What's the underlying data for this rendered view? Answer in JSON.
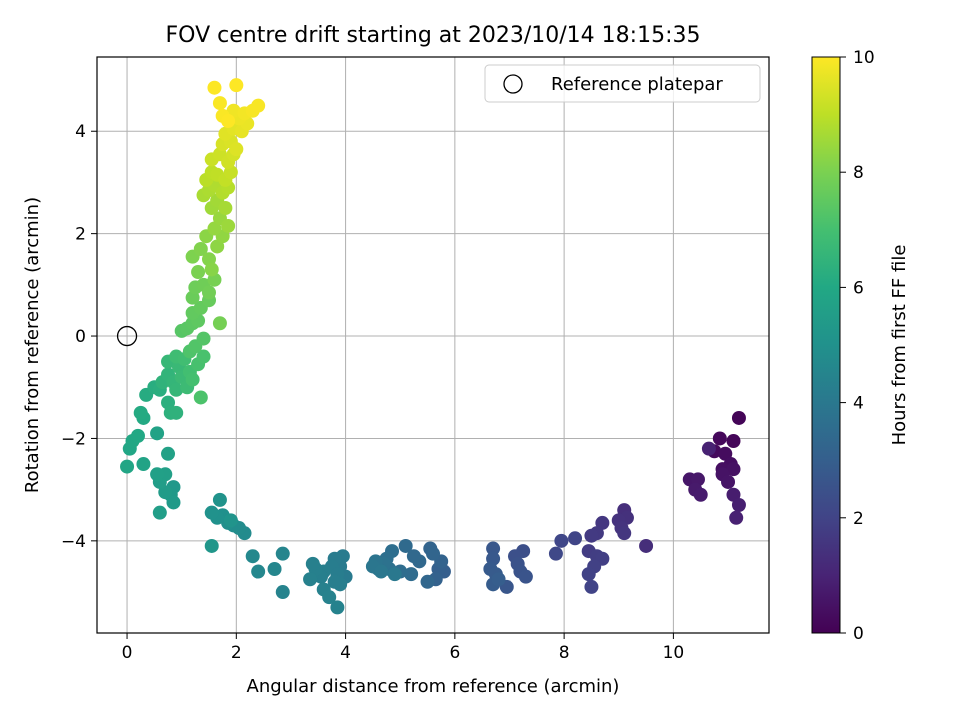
{
  "chart_data": {
    "type": "scatter",
    "title": "FOV centre drift starting at 2023/10/14 18:15:35",
    "xlabel": "Angular distance from reference (arcmin)",
    "ylabel": "Rotation from reference (arcmin)",
    "xlim": [
      -0.55,
      11.75
    ],
    "ylim": [
      -5.8,
      5.45
    ],
    "xticks": [
      0,
      2,
      4,
      6,
      8,
      10
    ],
    "yticks": [
      -4,
      -2,
      0,
      2,
      4
    ],
    "grid": true,
    "legend": {
      "position": "top-right",
      "entries": [
        "Reference platepar"
      ]
    },
    "reference_point": {
      "x": 0,
      "y": 0
    },
    "colorbar": {
      "label": "Hours from first FF file",
      "min": 0,
      "max": 10,
      "ticks": [
        0,
        2,
        4,
        6,
        8,
        10
      ],
      "colormap": "viridis"
    },
    "series": [
      {
        "points": [
          {
            "x": 11.2,
            "y": -1.6,
            "h": 0.1
          },
          {
            "x": 11.1,
            "y": -2.05,
            "h": 0.15
          },
          {
            "x": 10.85,
            "y": -2.0,
            "h": 0.2
          },
          {
            "x": 10.75,
            "y": -2.25,
            "h": 0.25
          },
          {
            "x": 10.95,
            "y": -2.3,
            "h": 0.3
          },
          {
            "x": 11.05,
            "y": -2.5,
            "h": 0.35
          },
          {
            "x": 10.9,
            "y": -2.6,
            "h": 0.4
          },
          {
            "x": 11.1,
            "y": -2.6,
            "h": 0.45
          },
          {
            "x": 10.9,
            "y": -2.7,
            "h": 0.5
          },
          {
            "x": 11.0,
            "y": -2.85,
            "h": 0.55
          },
          {
            "x": 10.3,
            "y": -2.8,
            "h": 0.6
          },
          {
            "x": 10.45,
            "y": -2.8,
            "h": 0.65
          },
          {
            "x": 10.4,
            "y": -3.0,
            "h": 0.7
          },
          {
            "x": 10.5,
            "y": -3.1,
            "h": 0.75
          },
          {
            "x": 11.1,
            "y": -3.1,
            "h": 0.8
          },
          {
            "x": 11.2,
            "y": -3.3,
            "h": 0.85
          },
          {
            "x": 11.15,
            "y": -3.55,
            "h": 0.9
          },
          {
            "x": 10.65,
            "y": -2.2,
            "h": 0.95
          },
          {
            "x": 9.5,
            "y": -4.1,
            "h": 1.3
          },
          {
            "x": 9.1,
            "y": -3.4,
            "h": 1.35
          },
          {
            "x": 9.15,
            "y": -3.55,
            "h": 1.4
          },
          {
            "x": 9.0,
            "y": -3.6,
            "h": 1.45
          },
          {
            "x": 9.05,
            "y": -3.75,
            "h": 1.5
          },
          {
            "x": 9.1,
            "y": -3.85,
            "h": 1.55
          },
          {
            "x": 8.7,
            "y": -3.65,
            "h": 1.6
          },
          {
            "x": 8.6,
            "y": -3.85,
            "h": 1.65
          },
          {
            "x": 8.5,
            "y": -3.9,
            "h": 1.7
          },
          {
            "x": 8.45,
            "y": -4.2,
            "h": 1.75
          },
          {
            "x": 8.6,
            "y": -4.3,
            "h": 1.8
          },
          {
            "x": 8.7,
            "y": -4.35,
            "h": 1.85
          },
          {
            "x": 8.55,
            "y": -4.5,
            "h": 1.9
          },
          {
            "x": 8.45,
            "y": -4.65,
            "h": 1.95
          },
          {
            "x": 8.5,
            "y": -4.9,
            "h": 2.0
          },
          {
            "x": 8.2,
            "y": -3.95,
            "h": 2.05
          },
          {
            "x": 7.95,
            "y": -4.0,
            "h": 2.1
          },
          {
            "x": 7.85,
            "y": -4.25,
            "h": 2.15
          },
          {
            "x": 7.25,
            "y": -4.2,
            "h": 2.4
          },
          {
            "x": 7.1,
            "y": -4.3,
            "h": 2.45
          },
          {
            "x": 7.15,
            "y": -4.45,
            "h": 2.5
          },
          {
            "x": 7.2,
            "y": -4.6,
            "h": 2.55
          },
          {
            "x": 7.3,
            "y": -4.7,
            "h": 2.6
          },
          {
            "x": 6.95,
            "y": -4.9,
            "h": 2.65
          },
          {
            "x": 6.7,
            "y": -4.15,
            "h": 2.7
          },
          {
            "x": 6.7,
            "y": -4.35,
            "h": 2.75
          },
          {
            "x": 6.65,
            "y": -4.55,
            "h": 2.8
          },
          {
            "x": 6.75,
            "y": -4.65,
            "h": 2.85
          },
          {
            "x": 6.7,
            "y": -4.85,
            "h": 2.9
          },
          {
            "x": 6.8,
            "y": -4.75,
            "h": 2.95
          },
          {
            "x": 5.8,
            "y": -4.6,
            "h": 3.0
          },
          {
            "x": 5.7,
            "y": -4.55,
            "h": 3.05
          },
          {
            "x": 5.65,
            "y": -4.75,
            "h": 3.1
          },
          {
            "x": 5.75,
            "y": -4.4,
            "h": 3.15
          },
          {
            "x": 5.55,
            "y": -4.15,
            "h": 3.2
          },
          {
            "x": 5.6,
            "y": -4.25,
            "h": 3.25
          },
          {
            "x": 5.5,
            "y": -4.8,
            "h": 3.3
          },
          {
            "x": 5.35,
            "y": -4.4,
            "h": 3.35
          },
          {
            "x": 5.25,
            "y": -4.3,
            "h": 3.4
          },
          {
            "x": 5.1,
            "y": -4.1,
            "h": 3.45
          },
          {
            "x": 5.2,
            "y": -4.65,
            "h": 3.5
          },
          {
            "x": 5.0,
            "y": -4.6,
            "h": 3.55
          },
          {
            "x": 4.85,
            "y": -4.2,
            "h": 3.6
          },
          {
            "x": 4.75,
            "y": -4.35,
            "h": 3.65
          },
          {
            "x": 4.8,
            "y": -4.55,
            "h": 3.7
          },
          {
            "x": 4.7,
            "y": -4.45,
            "h": 3.75
          },
          {
            "x": 4.6,
            "y": -4.55,
            "h": 3.8
          },
          {
            "x": 4.55,
            "y": -4.4,
            "h": 3.85
          },
          {
            "x": 4.5,
            "y": -4.5,
            "h": 3.9
          },
          {
            "x": 4.65,
            "y": -4.6,
            "h": 3.95
          },
          {
            "x": 4.9,
            "y": -4.65,
            "h": 4.0
          },
          {
            "x": 4.0,
            "y": -4.7,
            "h": 4.1
          },
          {
            "x": 3.9,
            "y": -4.5,
            "h": 4.12
          },
          {
            "x": 3.95,
            "y": -4.3,
            "h": 4.14
          },
          {
            "x": 3.8,
            "y": -4.35,
            "h": 4.16
          },
          {
            "x": 3.75,
            "y": -4.5,
            "h": 4.18
          },
          {
            "x": 3.85,
            "y": -4.65,
            "h": 4.2
          },
          {
            "x": 3.9,
            "y": -4.85,
            "h": 4.22
          },
          {
            "x": 3.8,
            "y": -4.8,
            "h": 4.24
          },
          {
            "x": 3.6,
            "y": -4.6,
            "h": 4.26
          },
          {
            "x": 3.55,
            "y": -4.7,
            "h": 4.28
          },
          {
            "x": 3.45,
            "y": -4.55,
            "h": 4.3
          },
          {
            "x": 3.4,
            "y": -4.45,
            "h": 4.32
          },
          {
            "x": 3.35,
            "y": -4.75,
            "h": 4.34
          },
          {
            "x": 3.6,
            "y": -4.95,
            "h": 4.36
          },
          {
            "x": 3.7,
            "y": -5.1,
            "h": 4.38
          },
          {
            "x": 3.85,
            "y": -5.3,
            "h": 4.4
          },
          {
            "x": 2.85,
            "y": -5.0,
            "h": 4.45
          },
          {
            "x": 2.85,
            "y": -4.25,
            "h": 4.5
          },
          {
            "x": 2.7,
            "y": -4.55,
            "h": 4.55
          },
          {
            "x": 2.4,
            "y": -4.6,
            "h": 4.6
          },
          {
            "x": 2.3,
            "y": -4.3,
            "h": 4.65
          },
          {
            "x": 2.15,
            "y": -3.85,
            "h": 4.75
          },
          {
            "x": 2.05,
            "y": -3.75,
            "h": 4.8
          },
          {
            "x": 1.95,
            "y": -3.7,
            "h": 4.85
          },
          {
            "x": 1.85,
            "y": -3.65,
            "h": 4.9
          },
          {
            "x": 1.75,
            "y": -3.5,
            "h": 4.95
          },
          {
            "x": 1.65,
            "y": -3.55,
            "h": 5.0
          },
          {
            "x": 1.55,
            "y": -3.45,
            "h": 5.05
          },
          {
            "x": 1.7,
            "y": -3.2,
            "h": 5.1
          },
          {
            "x": 1.9,
            "y": -3.6,
            "h": 5.15
          },
          {
            "x": 1.55,
            "y": -4.1,
            "h": 5.2
          },
          {
            "x": 0.85,
            "y": -2.95,
            "h": 5.3
          },
          {
            "x": 0.8,
            "y": -3.1,
            "h": 5.35
          },
          {
            "x": 0.85,
            "y": -3.25,
            "h": 5.4
          },
          {
            "x": 0.7,
            "y": -3.05,
            "h": 5.45
          },
          {
            "x": 0.6,
            "y": -2.85,
            "h": 5.5
          },
          {
            "x": 0.6,
            "y": -3.45,
            "h": 5.55
          },
          {
            "x": 0.7,
            "y": -2.7,
            "h": 5.6
          },
          {
            "x": 0.55,
            "y": -2.7,
            "h": 5.65
          },
          {
            "x": 0.75,
            "y": -2.3,
            "h": 5.7
          },
          {
            "x": 0.55,
            "y": -1.9,
            "h": 5.75
          },
          {
            "x": 0.3,
            "y": -2.5,
            "h": 5.8
          },
          {
            "x": 0.0,
            "y": -2.55,
            "h": 5.85
          },
          {
            "x": 0.05,
            "y": -2.2,
            "h": 5.9
          },
          {
            "x": 0.1,
            "y": -2.05,
            "h": 5.95
          },
          {
            "x": 0.2,
            "y": -1.95,
            "h": 6.0
          },
          {
            "x": 0.3,
            "y": -1.6,
            "h": 6.05
          },
          {
            "x": 0.25,
            "y": -1.5,
            "h": 6.1
          },
          {
            "x": 0.35,
            "y": -1.15,
            "h": 6.15
          },
          {
            "x": 0.5,
            "y": -1.0,
            "h": 6.2
          },
          {
            "x": 0.6,
            "y": -1.05,
            "h": 6.25
          },
          {
            "x": 0.75,
            "y": -1.3,
            "h": 6.3
          },
          {
            "x": 0.8,
            "y": -1.5,
            "h": 6.35
          },
          {
            "x": 0.9,
            "y": -1.5,
            "h": 6.4
          },
          {
            "x": 0.65,
            "y": -0.9,
            "h": 6.45
          },
          {
            "x": 0.75,
            "y": -0.75,
            "h": 6.5
          },
          {
            "x": 0.85,
            "y": -0.9,
            "h": 6.55
          },
          {
            "x": 0.9,
            "y": -1.05,
            "h": 6.6
          },
          {
            "x": 0.75,
            "y": -0.5,
            "h": 6.65
          },
          {
            "x": 0.95,
            "y": -0.6,
            "h": 6.7
          },
          {
            "x": 1.0,
            "y": -0.8,
            "h": 6.75
          },
          {
            "x": 1.1,
            "y": -1.0,
            "h": 6.8
          },
          {
            "x": 0.9,
            "y": -0.4,
            "h": 6.85
          },
          {
            "x": 1.05,
            "y": -0.45,
            "h": 6.9
          },
          {
            "x": 1.15,
            "y": -0.7,
            "h": 6.95
          },
          {
            "x": 1.2,
            "y": -0.85,
            "h": 7.0
          },
          {
            "x": 1.3,
            "y": -0.55,
            "h": 7.05
          },
          {
            "x": 1.4,
            "y": -0.4,
            "h": 7.1
          },
          {
            "x": 1.35,
            "y": -1.2,
            "h": 7.15
          },
          {
            "x": 1.15,
            "y": -0.3,
            "h": 7.2
          },
          {
            "x": 1.25,
            "y": -0.2,
            "h": 7.25
          },
          {
            "x": 1.4,
            "y": -0.05,
            "h": 7.3
          },
          {
            "x": 1.0,
            "y": 0.1,
            "h": 7.35
          },
          {
            "x": 1.1,
            "y": 0.15,
            "h": 7.4
          },
          {
            "x": 1.2,
            "y": 0.25,
            "h": 7.45
          },
          {
            "x": 1.3,
            "y": 0.3,
            "h": 7.5
          },
          {
            "x": 1.2,
            "y": 0.45,
            "h": 7.55
          },
          {
            "x": 1.35,
            "y": 0.55,
            "h": 7.6
          },
          {
            "x": 1.5,
            "y": 0.7,
            "h": 7.65
          },
          {
            "x": 1.2,
            "y": 0.75,
            "h": 7.7
          },
          {
            "x": 1.25,
            "y": 0.95,
            "h": 7.75
          },
          {
            "x": 1.4,
            "y": 1.0,
            "h": 7.8
          },
          {
            "x": 1.5,
            "y": 0.85,
            "h": 7.85
          },
          {
            "x": 1.7,
            "y": 0.25,
            "h": 7.9
          },
          {
            "x": 1.6,
            "y": 1.1,
            "h": 7.95
          },
          {
            "x": 1.3,
            "y": 1.25,
            "h": 8.0
          },
          {
            "x": 1.2,
            "y": 1.55,
            "h": 8.05
          },
          {
            "x": 1.35,
            "y": 1.7,
            "h": 8.1
          },
          {
            "x": 1.5,
            "y": 1.5,
            "h": 8.15
          },
          {
            "x": 1.55,
            "y": 1.3,
            "h": 8.2
          },
          {
            "x": 1.45,
            "y": 1.95,
            "h": 8.25
          },
          {
            "x": 1.65,
            "y": 1.75,
            "h": 8.3
          },
          {
            "x": 1.75,
            "y": 1.95,
            "h": 8.35
          },
          {
            "x": 1.6,
            "y": 2.1,
            "h": 8.4
          },
          {
            "x": 1.7,
            "y": 2.3,
            "h": 8.45
          },
          {
            "x": 1.85,
            "y": 2.15,
            "h": 8.5
          },
          {
            "x": 1.55,
            "y": 2.5,
            "h": 8.55
          },
          {
            "x": 1.65,
            "y": 2.65,
            "h": 8.6
          },
          {
            "x": 1.8,
            "y": 2.5,
            "h": 8.65
          },
          {
            "x": 1.4,
            "y": 2.75,
            "h": 8.7
          },
          {
            "x": 1.5,
            "y": 2.85,
            "h": 8.75
          },
          {
            "x": 1.6,
            "y": 2.95,
            "h": 8.8
          },
          {
            "x": 1.75,
            "y": 2.8,
            "h": 8.85
          },
          {
            "x": 1.85,
            "y": 2.9,
            "h": 8.9
          },
          {
            "x": 1.45,
            "y": 3.05,
            "h": 8.95
          },
          {
            "x": 1.55,
            "y": 3.2,
            "h": 9.0
          },
          {
            "x": 1.65,
            "y": 3.15,
            "h": 9.05
          },
          {
            "x": 1.8,
            "y": 3.05,
            "h": 9.1
          },
          {
            "x": 1.9,
            "y": 3.2,
            "h": 9.15
          },
          {
            "x": 1.55,
            "y": 3.45,
            "h": 9.2
          },
          {
            "x": 1.7,
            "y": 3.55,
            "h": 9.25
          },
          {
            "x": 1.85,
            "y": 3.4,
            "h": 9.3
          },
          {
            "x": 1.95,
            "y": 3.55,
            "h": 9.35
          },
          {
            "x": 1.75,
            "y": 3.75,
            "h": 9.4
          },
          {
            "x": 1.9,
            "y": 3.8,
            "h": 9.45
          },
          {
            "x": 2.0,
            "y": 3.65,
            "h": 9.5
          },
          {
            "x": 1.8,
            "y": 3.95,
            "h": 9.55
          },
          {
            "x": 1.95,
            "y": 4.05,
            "h": 9.6
          },
          {
            "x": 2.1,
            "y": 4.0,
            "h": 9.65
          },
          {
            "x": 2.2,
            "y": 4.15,
            "h": 9.7
          },
          {
            "x": 2.05,
            "y": 4.25,
            "h": 9.75
          },
          {
            "x": 1.95,
            "y": 4.4,
            "h": 9.8
          },
          {
            "x": 2.15,
            "y": 4.35,
            "h": 9.85
          },
          {
            "x": 2.3,
            "y": 4.4,
            "h": 9.9
          },
          {
            "x": 2.4,
            "y": 4.5,
            "h": 9.92
          },
          {
            "x": 1.7,
            "y": 4.55,
            "h": 9.94
          },
          {
            "x": 1.75,
            "y": 4.3,
            "h": 9.96
          },
          {
            "x": 1.6,
            "y": 4.85,
            "h": 9.98
          },
          {
            "x": 1.85,
            "y": 4.2,
            "h": 10.0
          },
          {
            "x": 2.0,
            "y": 4.9,
            "h": 10.0
          }
        ]
      }
    ]
  }
}
